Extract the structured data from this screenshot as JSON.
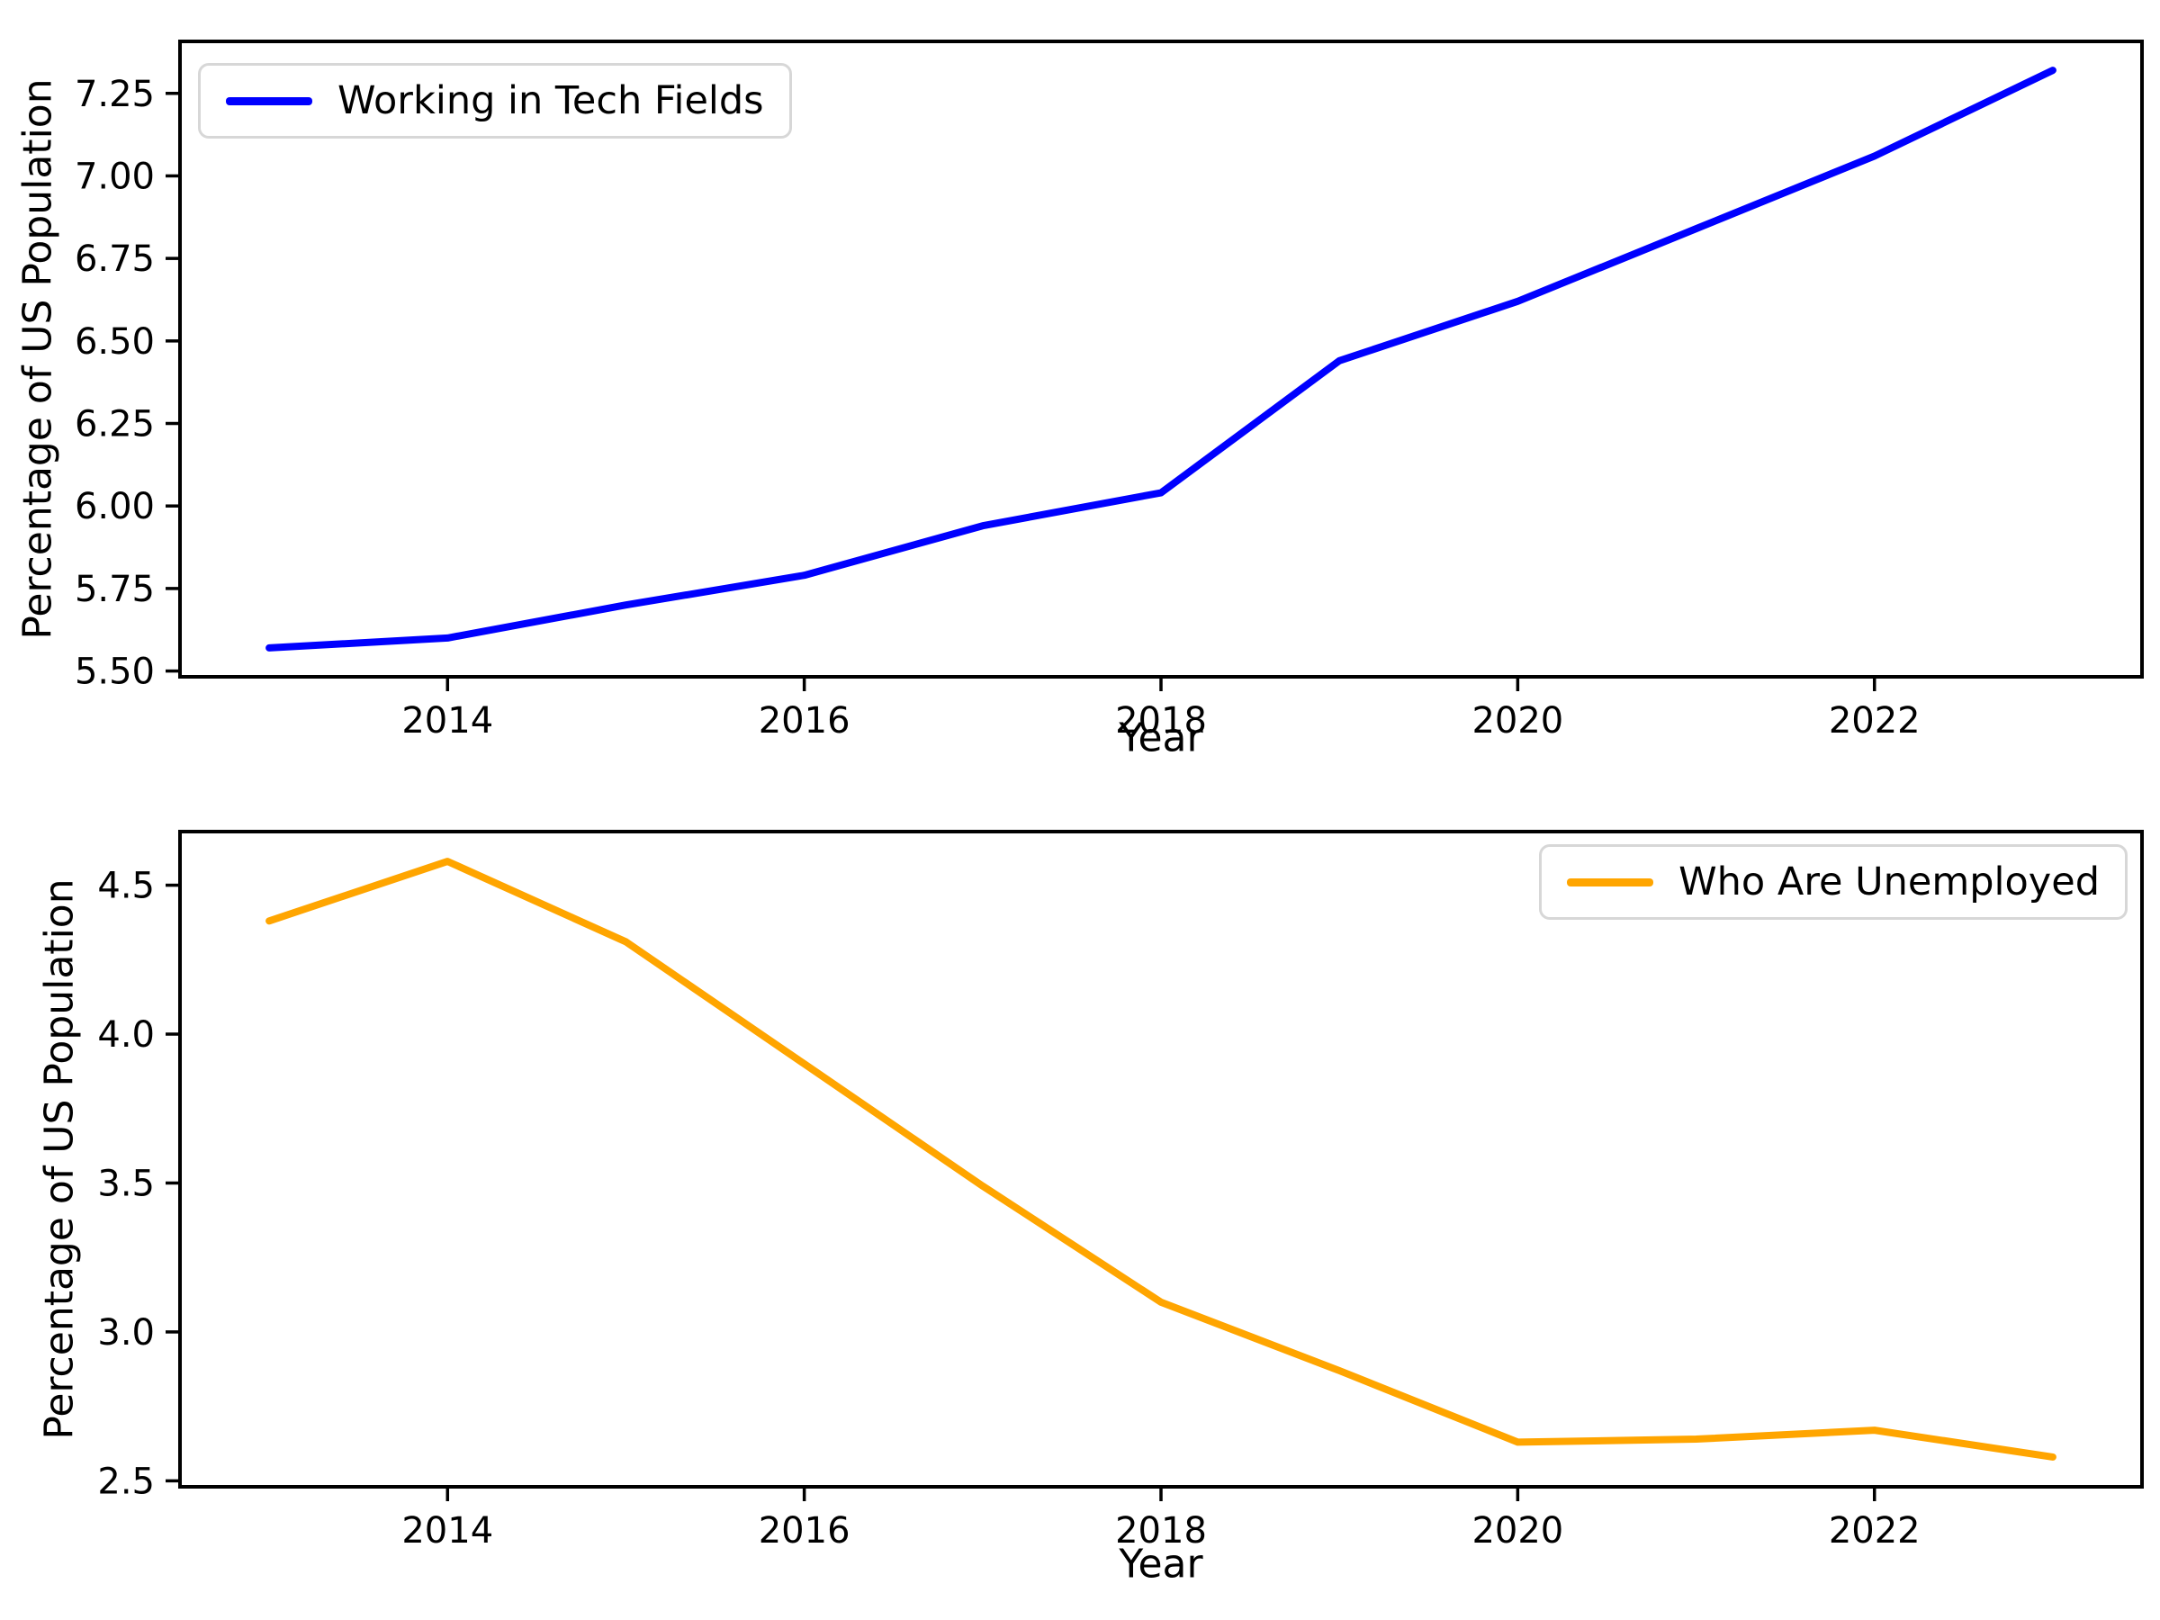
{
  "figure": {
    "background": "#ffffff",
    "text_color": "#000000",
    "spine_color": "#000000",
    "legend_border_color": "#d7d7d7"
  },
  "chart_data": [
    {
      "type": "line",
      "title": "",
      "xlabel": "Year",
      "ylabel": "Percentage of US Population",
      "legend": {
        "label": "Working in Tech Fields",
        "position": "upper-left"
      },
      "color": "#0000ff",
      "grid": false,
      "x": [
        2013,
        2014,
        2015,
        2016,
        2017,
        2018,
        2019,
        2020,
        2021,
        2022,
        2023
      ],
      "values": [
        5.57,
        5.6,
        5.7,
        5.79,
        5.94,
        6.04,
        6.44,
        6.62,
        6.84,
        7.06,
        7.32
      ],
      "xlim": [
        2012.5,
        2023.5
      ],
      "ylim": [
        5.4825,
        7.4075
      ],
      "xticks": {
        "values": [
          2014,
          2016,
          2018,
          2020,
          2022
        ],
        "labels": [
          "2014",
          "2016",
          "2018",
          "2020",
          "2022"
        ]
      },
      "yticks": {
        "values": [
          5.5,
          5.75,
          6.0,
          6.25,
          6.5,
          6.75,
          7.0,
          7.25
        ],
        "labels": [
          "5.50",
          "5.75",
          "6.00",
          "6.25",
          "6.50",
          "6.75",
          "7.00",
          "7.25"
        ]
      }
    },
    {
      "type": "line",
      "title": "",
      "xlabel": "Year",
      "ylabel": "Percentage of US Population",
      "legend": {
        "label": "Who Are Unemployed",
        "position": "upper-right"
      },
      "color": "#ffa500",
      "grid": false,
      "x": [
        2013,
        2014,
        2015,
        2016,
        2017,
        2018,
        2019,
        2020,
        2021,
        2022,
        2023
      ],
      "values": [
        4.38,
        4.58,
        4.31,
        3.9,
        3.49,
        3.1,
        2.87,
        2.63,
        2.64,
        2.67,
        2.58
      ],
      "xlim": [
        2012.5,
        2023.5
      ],
      "ylim": [
        2.48,
        4.68
      ],
      "xticks": {
        "values": [
          2014,
          2016,
          2018,
          2020,
          2022
        ],
        "labels": [
          "2014",
          "2016",
          "2018",
          "2020",
          "2022"
        ]
      },
      "yticks": {
        "values": [
          2.5,
          3.0,
          3.5,
          4.0,
          4.5
        ],
        "labels": [
          "2.5",
          "3.0",
          "3.5",
          "4.0",
          "4.5"
        ]
      }
    }
  ]
}
